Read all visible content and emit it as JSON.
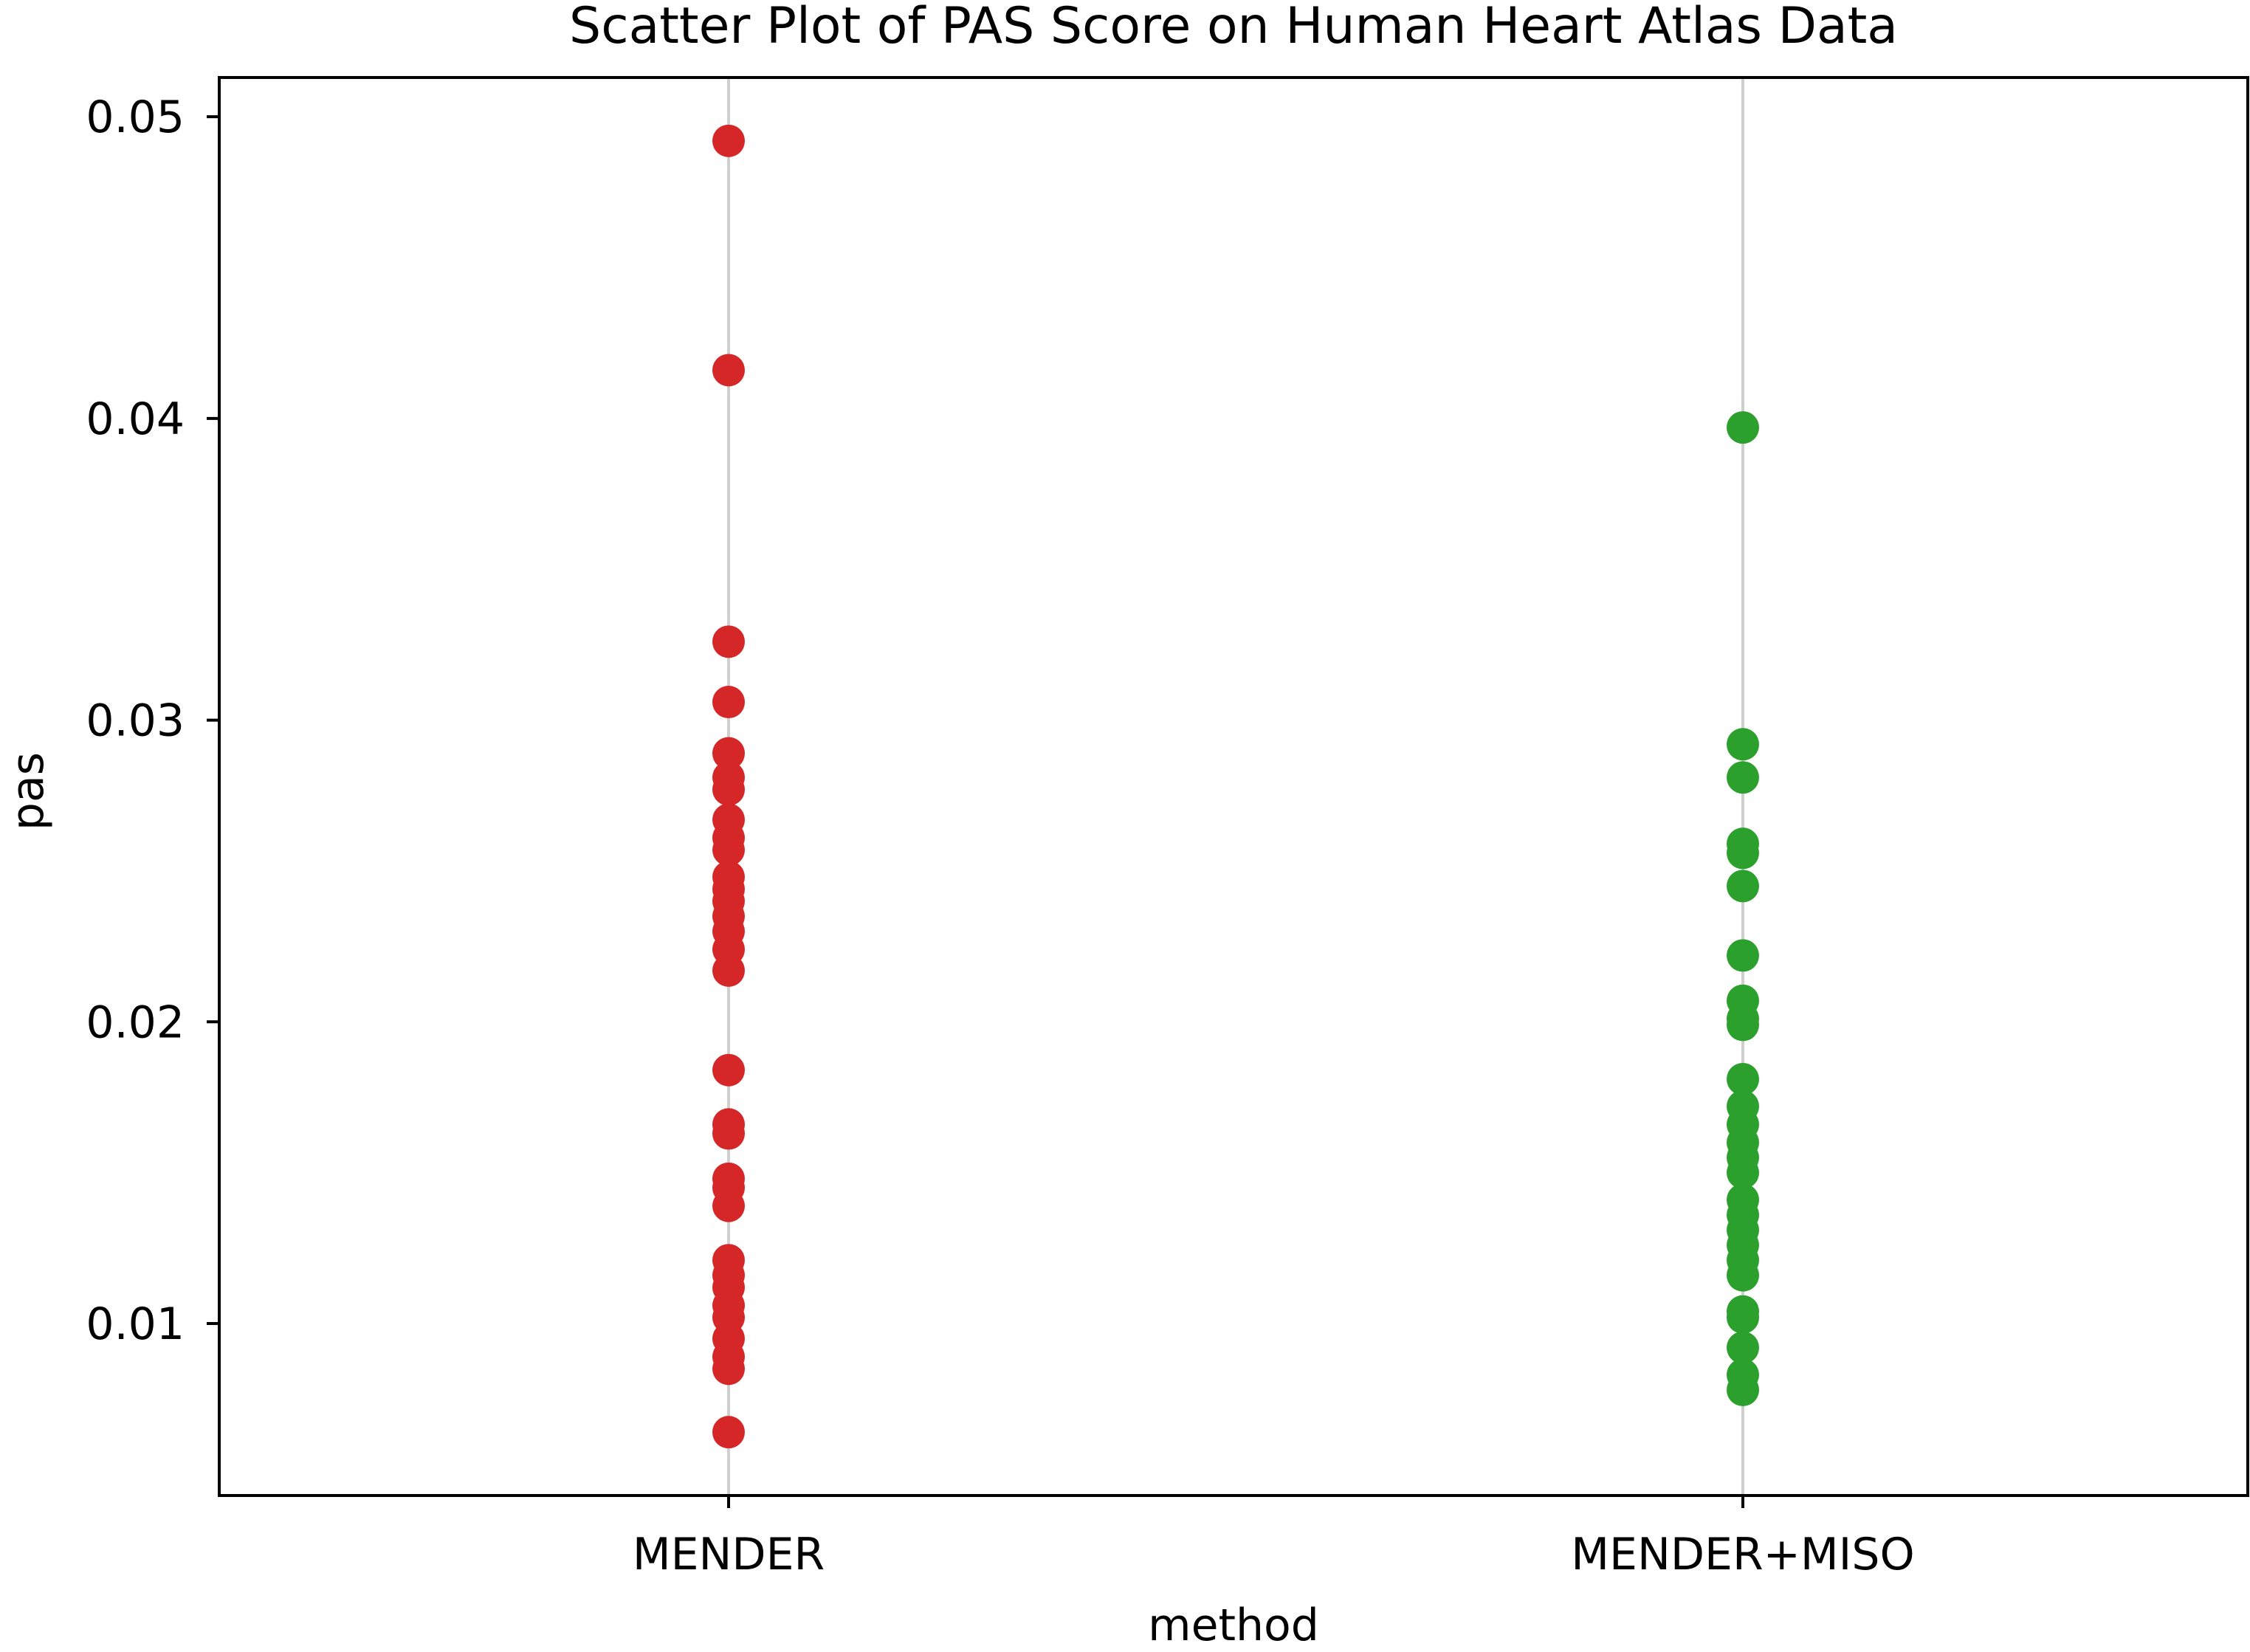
{
  "chart_data": {
    "type": "scatter",
    "title": "Scatter Plot of PAS Score on Human Heart Atlas Data",
    "xlabel": "method",
    "ylabel": "pas",
    "categories": [
      "MENDER",
      "MENDER+MISO"
    ],
    "ylim": [
      0.0043,
      0.0513
    ],
    "yticks": [
      0.01,
      0.02,
      0.03,
      0.04,
      0.05
    ],
    "ytick_labels": [
      "0.01",
      "0.02",
      "0.03",
      "0.04",
      "0.05"
    ],
    "grid": "vertical lines at categories",
    "legend": "none",
    "series": [
      {
        "color": "#d62728",
        "category": "MENDER",
        "values": [
          0.0492,
          0.0416,
          0.0326,
          0.0306,
          0.0289,
          0.0281,
          0.0277,
          0.0267,
          0.0261,
          0.0257,
          0.0248,
          0.0244,
          0.024,
          0.0235,
          0.023,
          0.0224,
          0.0217,
          0.0184,
          0.0166,
          0.0163,
          0.0148,
          0.0145,
          0.0139,
          0.0121,
          0.0116,
          0.0112,
          0.0106,
          0.0102,
          0.0095,
          0.0089,
          0.0085,
          0.0064
        ]
      },
      {
        "color": "#2ca02c",
        "category": "MENDER+MISO",
        "values": [
          0.0397,
          0.0292,
          0.0281,
          0.0259,
          0.0256,
          0.0245,
          0.0222,
          0.0207,
          0.0201,
          0.0199,
          0.0181,
          0.0172,
          0.0166,
          0.016,
          0.0155,
          0.015,
          0.0141,
          0.0136,
          0.0131,
          0.0126,
          0.0121,
          0.0116,
          0.0104,
          0.0102,
          0.0092,
          0.0083,
          0.0078
        ]
      }
    ]
  }
}
